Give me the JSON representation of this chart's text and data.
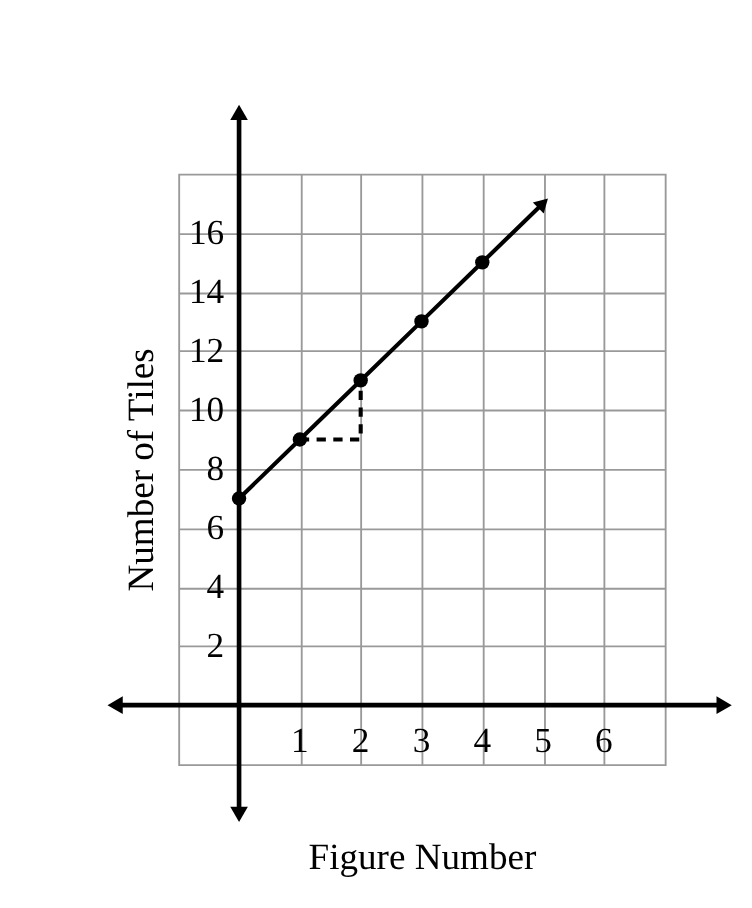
{
  "chart_data": {
    "type": "line",
    "xlabel": "Figure Number",
    "ylabel": "Number of Tiles",
    "xlim": [
      -1,
      7
    ],
    "ylim": [
      -2,
      18
    ],
    "xticks": [
      1,
      2,
      3,
      4,
      5,
      6
    ],
    "yticks": [
      2,
      4,
      6,
      8,
      10,
      12,
      14,
      16
    ],
    "grid": true,
    "series": [
      {
        "color": "#000000",
        "x": [
          0,
          1,
          2,
          3,
          4,
          5
        ],
        "values": [
          7,
          9,
          11,
          13,
          15,
          17
        ],
        "marker": "none",
        "line_style": "solid"
      },
      {
        "type": "scatter",
        "color": "#000000",
        "x": [
          0,
          1,
          2,
          3,
          4
        ],
        "values": [
          7,
          9,
          11,
          13,
          15
        ],
        "marker": "circle"
      },
      {
        "type": "line",
        "color": "#000000",
        "x": [
          1,
          2,
          2
        ],
        "values": [
          9,
          9,
          11
        ],
        "marker": "none",
        "line_style": "dashed"
      }
    ]
  }
}
